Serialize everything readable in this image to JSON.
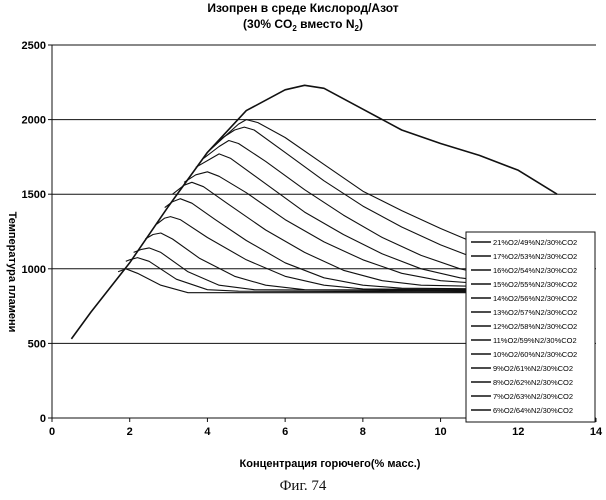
{
  "chart_data": {
    "type": "line",
    "title": "Изопрен в среде Кислород/Азот",
    "subtitle_prefix": "(30% CO",
    "subtitle_sub1": "2",
    "subtitle_mid": " вместо N",
    "subtitle_sub2": "2",
    "subtitle_suffix": ")",
    "xlabel": "Концентрация горючего(% масс.)",
    "ylabel": "Температура пламени",
    "xlim": [
      0,
      14
    ],
    "ylim": [
      0,
      2500
    ],
    "xticks": [
      0,
      2,
      4,
      6,
      8,
      10,
      12,
      14
    ],
    "yticks": [
      0,
      500,
      1000,
      1500,
      2000,
      2500
    ],
    "grid_y": true,
    "legend_position": "right",
    "line_color": "#111111",
    "series": [
      {
        "name": "21%O2/49%N2/30%CO2",
        "points": [
          [
            0.5,
            530
          ],
          [
            1.0,
            710
          ],
          [
            2.0,
            1040
          ],
          [
            3.0,
            1420
          ],
          [
            4.0,
            1780
          ],
          [
            5.0,
            2060
          ],
          [
            6.0,
            2200
          ],
          [
            6.5,
            2230
          ],
          [
            7.0,
            2210
          ],
          [
            8.0,
            2070
          ],
          [
            9.0,
            1930
          ],
          [
            10.0,
            1840
          ],
          [
            11.0,
            1760
          ],
          [
            12.0,
            1660
          ],
          [
            13.0,
            1500
          ]
        ]
      },
      {
        "name": "17%O2/53%N2/30%CO2",
        "points": [
          [
            4.0,
            1780
          ],
          [
            4.5,
            1900
          ],
          [
            4.8,
            1970
          ],
          [
            5.0,
            2000
          ],
          [
            5.3,
            1980
          ],
          [
            6.0,
            1880
          ],
          [
            7.0,
            1700
          ],
          [
            8.0,
            1520
          ],
          [
            9.0,
            1390
          ],
          [
            10.0,
            1270
          ],
          [
            11.0,
            1160
          ],
          [
            11.4,
            1120
          ]
        ]
      },
      {
        "name": "16%O2/54%N2/30%CO2",
        "points": [
          [
            4.0,
            1780
          ],
          [
            4.4,
            1880
          ],
          [
            4.7,
            1930
          ],
          [
            4.95,
            1950
          ],
          [
            5.2,
            1930
          ],
          [
            6.0,
            1780
          ],
          [
            7.0,
            1590
          ],
          [
            8.0,
            1420
          ],
          [
            9.0,
            1280
          ],
          [
            10.0,
            1160
          ],
          [
            11.0,
            1060
          ],
          [
            11.4,
            1030
          ]
        ]
      },
      {
        "name": "15%O2/55%N2/30%CO2",
        "points": [
          [
            3.9,
            1740
          ],
          [
            4.3,
            1820
          ],
          [
            4.55,
            1860
          ],
          [
            4.8,
            1840
          ],
          [
            5.5,
            1720
          ],
          [
            6.5,
            1530
          ],
          [
            7.5,
            1360
          ],
          [
            8.5,
            1210
          ],
          [
            9.5,
            1090
          ],
          [
            10.5,
            1000
          ],
          [
            11.4,
            950
          ]
        ]
      },
      {
        "name": "14%O2/56%N2/30%CO2",
        "points": [
          [
            3.7,
            1680
          ],
          [
            4.1,
            1740
          ],
          [
            4.3,
            1770
          ],
          [
            4.6,
            1740
          ],
          [
            5.5,
            1570
          ],
          [
            6.5,
            1380
          ],
          [
            7.5,
            1230
          ],
          [
            8.5,
            1100
          ],
          [
            9.5,
            1000
          ],
          [
            10.5,
            940
          ],
          [
            11.4,
            910
          ]
        ]
      },
      {
        "name": "13%O2/57%N2/30%CO2",
        "points": [
          [
            3.4,
            1580
          ],
          [
            3.7,
            1630
          ],
          [
            4.0,
            1650
          ],
          [
            4.3,
            1620
          ],
          [
            5.0,
            1510
          ],
          [
            6.0,
            1330
          ],
          [
            7.0,
            1180
          ],
          [
            8.0,
            1060
          ],
          [
            9.0,
            970
          ],
          [
            10.0,
            920
          ],
          [
            11.4,
            895
          ]
        ]
      },
      {
        "name": "12%O2/58%N2/30%CO2",
        "points": [
          [
            3.1,
            1500
          ],
          [
            3.4,
            1560
          ],
          [
            3.6,
            1580
          ],
          [
            3.9,
            1550
          ],
          [
            4.5,
            1440
          ],
          [
            5.5,
            1260
          ],
          [
            6.5,
            1110
          ],
          [
            7.5,
            990
          ],
          [
            8.5,
            920
          ],
          [
            9.5,
            890
          ],
          [
            11.4,
            880
          ]
        ]
      },
      {
        "name": "11%O2/59%N2/30%CO2",
        "points": [
          [
            2.9,
            1410
          ],
          [
            3.1,
            1450
          ],
          [
            3.3,
            1470
          ],
          [
            3.6,
            1440
          ],
          [
            4.2,
            1330
          ],
          [
            5.0,
            1190
          ],
          [
            6.0,
            1040
          ],
          [
            7.0,
            940
          ],
          [
            8.0,
            890
          ],
          [
            9.0,
            870
          ],
          [
            11.4,
            865
          ]
        ]
      },
      {
        "name": "10%O2/60%N2/30%CO2",
        "points": [
          [
            2.7,
            1300
          ],
          [
            2.9,
            1340
          ],
          [
            3.05,
            1350
          ],
          [
            3.3,
            1330
          ],
          [
            4.0,
            1210
          ],
          [
            5.0,
            1060
          ],
          [
            6.0,
            950
          ],
          [
            7.0,
            890
          ],
          [
            8.0,
            865
          ],
          [
            11.4,
            860
          ]
        ]
      },
      {
        "name": "9%O2/61%N2/30%CO2",
        "points": [
          [
            2.4,
            1200
          ],
          [
            2.6,
            1230
          ],
          [
            2.8,
            1240
          ],
          [
            3.1,
            1200
          ],
          [
            3.8,
            1070
          ],
          [
            4.7,
            950
          ],
          [
            5.5,
            890
          ],
          [
            6.5,
            860
          ],
          [
            11.4,
            855
          ]
        ]
      },
      {
        "name": "8%O2/62%N2/30%CO2",
        "points": [
          [
            2.1,
            1110
          ],
          [
            2.3,
            1130
          ],
          [
            2.5,
            1140
          ],
          [
            2.8,
            1110
          ],
          [
            3.5,
            980
          ],
          [
            4.3,
            890
          ],
          [
            5.2,
            860
          ],
          [
            11.4,
            850
          ]
        ]
      },
      {
        "name": "7%O2/63%N2/30%CO2",
        "points": [
          [
            1.9,
            1050
          ],
          [
            2.0,
            1060
          ],
          [
            2.2,
            1075
          ],
          [
            2.5,
            1050
          ],
          [
            3.2,
            930
          ],
          [
            4.0,
            860
          ],
          [
            4.8,
            850
          ],
          [
            11.4,
            845
          ]
        ]
      },
      {
        "name": "6%O2/64%N2/30%CO2",
        "points": [
          [
            1.7,
            980
          ],
          [
            1.9,
            1000
          ],
          [
            2.2,
            970
          ],
          [
            2.8,
            890
          ],
          [
            3.5,
            840
          ],
          [
            11.4,
            840
          ]
        ]
      }
    ]
  },
  "caption": "Фиг. 74"
}
